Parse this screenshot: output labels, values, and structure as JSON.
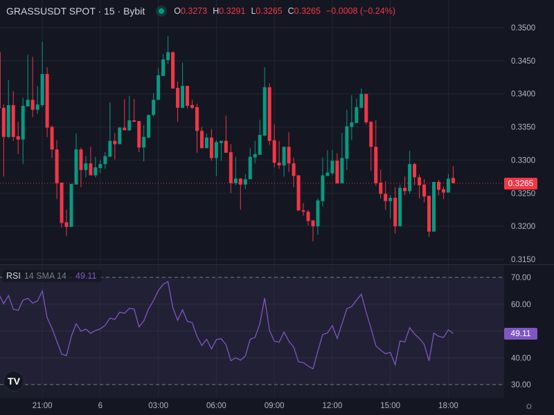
{
  "header": {
    "symbol_title": "GRASSUSDT SPOT · 15 · Bybit",
    "market_status": "open",
    "open_label": "O",
    "open": "0.3273",
    "high_label": "H",
    "high": "0.3291",
    "low_label": "L",
    "low": "0.3265",
    "close_label": "C",
    "close": "0.3265",
    "change": "−0.0008 (−0.24%)"
  },
  "colors": {
    "up": "#089981",
    "down": "#f23645",
    "rsi": "#7e57c2",
    "background": "#141722",
    "grid": "#232734"
  },
  "price_axis": {
    "ticks": [
      "0.3500",
      "0.3450",
      "0.3400",
      "0.3350",
      "0.3300",
      "0.3250",
      "0.3200",
      "0.3150"
    ],
    "current_price": "0.3265"
  },
  "rsi": {
    "name": "RSI",
    "params": "14 SMA 14",
    "value": "49.11",
    "ticks": [
      "70.00",
      "60.00",
      "40.00",
      "30.00"
    ]
  },
  "time_axis": {
    "ticks": [
      {
        "label": "21:00",
        "index": 9
      },
      {
        "label": "6",
        "index": 21
      },
      {
        "label": "03:00",
        "index": 33
      },
      {
        "label": "06:00",
        "index": 45
      },
      {
        "label": "09:00",
        "index": 57
      },
      {
        "label": "12:00",
        "index": 69
      },
      {
        "label": "15:00",
        "index": 81
      },
      {
        "label": "18:00",
        "index": 93
      }
    ]
  },
  "icons": {
    "logo": "tradingview-logo",
    "settings": "settings-icon"
  },
  "logo_text": "TV",
  "chart_data": {
    "type": "candlestick",
    "interval": "15",
    "price_range": [
      0.315,
      0.35
    ],
    "rsi_range": [
      30,
      70
    ],
    "candles": [
      [
        0.3463,
        0.3467,
        0.3376,
        0.3378
      ],
      [
        0.3379,
        0.3384,
        0.3275,
        0.3335
      ],
      [
        0.3335,
        0.3421,
        0.3333,
        0.3383
      ],
      [
        0.3383,
        0.3404,
        0.3329,
        0.3335
      ],
      [
        0.3336,
        0.3358,
        0.3309,
        0.3331
      ],
      [
        0.3331,
        0.3394,
        0.3294,
        0.3382
      ],
      [
        0.3381,
        0.3459,
        0.3381,
        0.3391
      ],
      [
        0.3391,
        0.3456,
        0.3365,
        0.3376
      ],
      [
        0.3376,
        0.3412,
        0.337,
        0.3384
      ],
      [
        0.3383,
        0.3479,
        0.338,
        0.343
      ],
      [
        0.343,
        0.344,
        0.3335,
        0.3349
      ],
      [
        0.335,
        0.3352,
        0.3303,
        0.3316
      ],
      [
        0.3316,
        0.333,
        0.3241,
        0.3265
      ],
      [
        0.3266,
        0.3266,
        0.3198,
        0.3205
      ],
      [
        0.3206,
        0.3225,
        0.3185,
        0.3199
      ],
      [
        0.3199,
        0.3264,
        0.3199,
        0.3264
      ],
      [
        0.3263,
        0.334,
        0.3263,
        0.3316
      ],
      [
        0.3316,
        0.3319,
        0.3259,
        0.3285
      ],
      [
        0.3285,
        0.3306,
        0.3274,
        0.3295
      ],
      [
        0.3295,
        0.332,
        0.3277,
        0.3277
      ],
      [
        0.3277,
        0.3305,
        0.3274,
        0.3289
      ],
      [
        0.3288,
        0.33,
        0.328,
        0.3294
      ],
      [
        0.3294,
        0.3312,
        0.3287,
        0.3306
      ],
      [
        0.3305,
        0.3387,
        0.3305,
        0.3329
      ],
      [
        0.3329,
        0.3341,
        0.3301,
        0.3324
      ],
      [
        0.3324,
        0.335,
        0.3324,
        0.3349
      ],
      [
        0.3349,
        0.3392,
        0.3345,
        0.3345
      ],
      [
        0.3345,
        0.3397,
        0.3344,
        0.336
      ],
      [
        0.336,
        0.3392,
        0.3357,
        0.3358
      ],
      [
        0.3359,
        0.3359,
        0.3312,
        0.3319
      ],
      [
        0.3319,
        0.3353,
        0.3298,
        0.3335
      ],
      [
        0.3334,
        0.3369,
        0.3333,
        0.3368
      ],
      [
        0.3368,
        0.3401,
        0.3366,
        0.3391
      ],
      [
        0.3391,
        0.3439,
        0.3391,
        0.3428
      ],
      [
        0.3427,
        0.346,
        0.3427,
        0.3452
      ],
      [
        0.3451,
        0.3487,
        0.3445,
        0.3463
      ],
      [
        0.3463,
        0.3464,
        0.3408,
        0.3408
      ],
      [
        0.3409,
        0.3419,
        0.3358,
        0.3379
      ],
      [
        0.3379,
        0.3447,
        0.3378,
        0.3412
      ],
      [
        0.3412,
        0.3412,
        0.3378,
        0.3382
      ],
      [
        0.3383,
        0.3391,
        0.3377,
        0.3379
      ],
      [
        0.338,
        0.3385,
        0.3311,
        0.3344
      ],
      [
        0.3344,
        0.335,
        0.3318,
        0.3318
      ],
      [
        0.3318,
        0.334,
        0.3318,
        0.3334
      ],
      [
        0.3334,
        0.3347,
        0.3299,
        0.3303
      ],
      [
        0.3303,
        0.333,
        0.3276,
        0.3327
      ],
      [
        0.3326,
        0.3329,
        0.3299,
        0.3329
      ],
      [
        0.3329,
        0.3367,
        0.3311,
        0.3311
      ],
      [
        0.3312,
        0.3324,
        0.325,
        0.3265
      ],
      [
        0.3265,
        0.3305,
        0.3262,
        0.3272
      ],
      [
        0.3272,
        0.3273,
        0.3225,
        0.3263
      ],
      [
        0.3263,
        0.3279,
        0.3256,
        0.3271
      ],
      [
        0.3271,
        0.3318,
        0.3271,
        0.3305
      ],
      [
        0.3304,
        0.3329,
        0.3295,
        0.3309
      ],
      [
        0.3308,
        0.3361,
        0.3308,
        0.3338
      ],
      [
        0.3337,
        0.344,
        0.3336,
        0.341
      ],
      [
        0.341,
        0.3416,
        0.3323,
        0.3329
      ],
      [
        0.333,
        0.3354,
        0.3289,
        0.3296
      ],
      [
        0.3296,
        0.3329,
        0.3287,
        0.3292
      ],
      [
        0.3292,
        0.332,
        0.3275,
        0.332
      ],
      [
        0.332,
        0.3342,
        0.3282,
        0.3295
      ],
      [
        0.3295,
        0.3304,
        0.3259,
        0.3276
      ],
      [
        0.3277,
        0.3277,
        0.3223,
        0.3224
      ],
      [
        0.3224,
        0.3235,
        0.3216,
        0.3222
      ],
      [
        0.3222,
        0.3225,
        0.3201,
        0.3208
      ],
      [
        0.3209,
        0.3209,
        0.3177,
        0.32
      ],
      [
        0.32,
        0.3242,
        0.3187,
        0.3239
      ],
      [
        0.3238,
        0.3304,
        0.323,
        0.3277
      ],
      [
        0.3276,
        0.3315,
        0.3276,
        0.3281
      ],
      [
        0.328,
        0.3315,
        0.3277,
        0.3299
      ],
      [
        0.3299,
        0.331,
        0.3264,
        0.3265
      ],
      [
        0.3265,
        0.3341,
        0.3265,
        0.3303
      ],
      [
        0.3302,
        0.3376,
        0.3285,
        0.3351
      ],
      [
        0.335,
        0.3398,
        0.333,
        0.3357
      ],
      [
        0.3356,
        0.3393,
        0.3356,
        0.338
      ],
      [
        0.3379,
        0.3408,
        0.3378,
        0.34
      ],
      [
        0.34,
        0.34,
        0.3354,
        0.3357
      ],
      [
        0.3358,
        0.3358,
        0.3284,
        0.332
      ],
      [
        0.332,
        0.336,
        0.3261,
        0.3265
      ],
      [
        0.3266,
        0.3286,
        0.3242,
        0.3249
      ],
      [
        0.3249,
        0.3268,
        0.3225,
        0.3238
      ],
      [
        0.3238,
        0.3247,
        0.3212,
        0.3243
      ],
      [
        0.3243,
        0.3259,
        0.3189,
        0.32
      ],
      [
        0.32,
        0.3263,
        0.32,
        0.3258
      ],
      [
        0.3258,
        0.3275,
        0.3247,
        0.3253
      ],
      [
        0.3253,
        0.3314,
        0.3249,
        0.3294
      ],
      [
        0.3294,
        0.3296,
        0.3262,
        0.3274
      ],
      [
        0.3274,
        0.3278,
        0.3242,
        0.3262
      ],
      [
        0.3263,
        0.3271,
        0.3236,
        0.3245
      ],
      [
        0.3246,
        0.3246,
        0.3184,
        0.3192
      ],
      [
        0.3192,
        0.3267,
        0.3192,
        0.3267
      ],
      [
        0.3267,
        0.327,
        0.3247,
        0.3255
      ],
      [
        0.3256,
        0.326,
        0.3241,
        0.3251
      ],
      [
        0.3251,
        0.3279,
        0.3251,
        0.3272
      ],
      [
        0.3273,
        0.3291,
        0.3265,
        0.3265
      ]
    ],
    "candle_fields": [
      "open",
      "high",
      "low",
      "close"
    ],
    "rsi_values": [
      63.8,
      60.2,
      63.2,
      58.1,
      57.7,
      61.5,
      62.2,
      60.4,
      61.2,
      64.9,
      54.9,
      51.0,
      46.2,
      41.4,
      40.8,
      48.0,
      52.7,
      49.9,
      50.7,
      49.1,
      50.2,
      50.8,
      52.1,
      54.8,
      54.3,
      57.0,
      56.6,
      58.4,
      58.2,
      51.5,
      53.8,
      58.3,
      61.3,
      65.1,
      67.4,
      68.4,
      58.7,
      54.0,
      57.9,
      53.6,
      53.1,
      48.0,
      44.6,
      46.9,
      43.3,
      46.8,
      47.1,
      44.9,
      38.9,
      40.0,
      39.1,
      40.6,
      46.9,
      47.6,
      52.7,
      62.3,
      50.2,
      46.2,
      45.8,
      49.6,
      46.2,
      44.0,
      38.5,
      38.2,
      36.9,
      35.9,
      42.5,
      48.6,
      49.3,
      52.0,
      47.2,
      52.7,
      58.3,
      59.1,
      61.5,
      63.7,
      57.0,
      51.0,
      44.5,
      42.8,
      41.5,
      42.0,
      37.4,
      46.3,
      45.9,
      51.2,
      48.9,
      47.2,
      45.0,
      38.9,
      49.2,
      48.0,
      47.6,
      50.4,
      49.11
    ]
  }
}
